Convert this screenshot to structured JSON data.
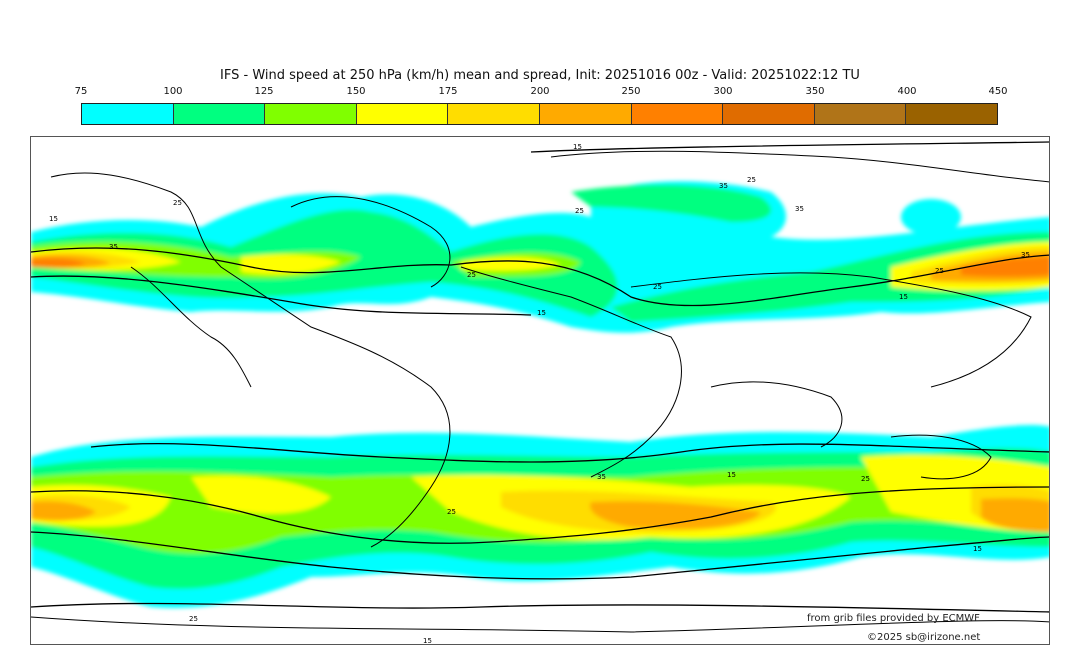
{
  "title": "IFS - Wind speed at 250 hPa (km/h) mean and spread, Init: 20251016 00z - Valid: 20251022:12 TU",
  "colorbar": {
    "ticks": [
      "75",
      "100",
      "125",
      "150",
      "175",
      "200",
      "250",
      "300",
      "350",
      "400",
      "450"
    ],
    "colors": [
      "#00ffff",
      "#00ff80",
      "#80ff00",
      "#ffff00",
      "#ffdd00",
      "#ffaa00",
      "#ff8000",
      "#e06c00",
      "#b07418",
      "#9a6200"
    ]
  },
  "contour_labels": [
    "15",
    "25",
    "35",
    "15",
    "25",
    "35",
    "25",
    "35",
    "15",
    "25",
    "25",
    "35",
    "15",
    "25",
    "35",
    "15",
    "25",
    "25",
    "15",
    "25",
    "15"
  ],
  "credits": {
    "source": "from grib files provided by ECMWF",
    "copyright": "©2025 sb@irizone.net"
  }
}
